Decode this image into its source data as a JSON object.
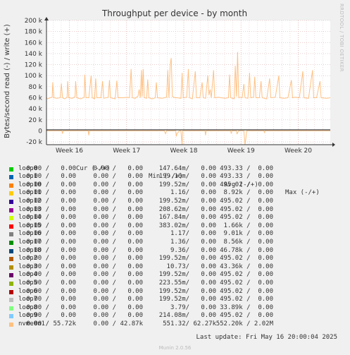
{
  "chart_data": {
    "type": "line",
    "title": "Throughput per device - by month",
    "ylabel": "Bytes/second read (-) / write (+)",
    "side_label": "RRDTOOL / TOBI OETIKER",
    "ylim": [
      -25000,
      200000
    ],
    "yticks": [
      {
        "label": "200 k",
        "value": 200000
      },
      {
        "label": "180 k",
        "value": 180000
      },
      {
        "label": "160 k",
        "value": 160000
      },
      {
        "label": "140 k",
        "value": 140000
      },
      {
        "label": "120 k",
        "value": 120000
      },
      {
        "label": "100 k",
        "value": 100000
      },
      {
        "label": "80 k",
        "value": 80000
      },
      {
        "label": "60 k",
        "value": 60000
      },
      {
        "label": "40 k",
        "value": 40000
      },
      {
        "label": "20 k",
        "value": 20000
      },
      {
        "label": "0",
        "value": 0
      },
      {
        "label": "-20 k",
        "value": -20000
      }
    ],
    "xlim": [
      15.6,
      20.56
    ],
    "xticks": [
      {
        "label": "Week 16",
        "value": 16
      },
      {
        "label": "Week 17",
        "value": 17
      },
      {
        "label": "Week 18",
        "value": 18
      },
      {
        "label": "Week 19",
        "value": 19
      },
      {
        "label": "Week 20",
        "value": 20
      }
    ],
    "grid": true,
    "series": [
      {
        "name": "nvme0n1",
        "color": "#ffc082",
        "write_points": [
          [
            15.6,
            60000
          ],
          [
            15.62,
            58000
          ],
          [
            15.66,
            60000
          ],
          [
            15.7,
            61000
          ],
          [
            15.71,
            88000
          ],
          [
            15.73,
            60000
          ],
          [
            15.78,
            59000
          ],
          [
            15.84,
            60000
          ],
          [
            15.86,
            86000
          ],
          [
            15.88,
            60000
          ],
          [
            15.92,
            58000
          ],
          [
            15.96,
            61000
          ],
          [
            15.97,
            90000
          ],
          [
            15.99,
            60000
          ],
          [
            16.05,
            59000
          ],
          [
            16.1,
            62000
          ],
          [
            16.11,
            90000
          ],
          [
            16.13,
            60000
          ],
          [
            16.2,
            58000
          ],
          [
            16.26,
            61000
          ],
          [
            16.27,
            102000
          ],
          [
            16.29,
            60000
          ],
          [
            16.34,
            60000
          ],
          [
            16.38,
            100000
          ],
          [
            16.4,
            60000
          ],
          [
            16.44,
            58000
          ],
          [
            16.46,
            95000
          ],
          [
            16.48,
            60000
          ],
          [
            16.55,
            60000
          ],
          [
            16.58,
            90000
          ],
          [
            16.6,
            59000
          ],
          [
            16.68,
            61000
          ],
          [
            16.7,
            92000
          ],
          [
            16.72,
            60000
          ],
          [
            16.8,
            58000
          ],
          [
            16.83,
            91000
          ],
          [
            16.85,
            60000
          ],
          [
            16.95,
            60000
          ],
          [
            17.0,
            61000
          ],
          [
            17.05,
            60000
          ],
          [
            17.08,
            112000
          ],
          [
            17.1,
            60000
          ],
          [
            17.15,
            59000
          ],
          [
            17.2,
            63000
          ],
          [
            17.22,
            75000
          ],
          [
            17.24,
            60000
          ],
          [
            17.26,
            110000
          ],
          [
            17.27,
            62000
          ],
          [
            17.29,
            112000
          ],
          [
            17.31,
            60000
          ],
          [
            17.35,
            59000
          ],
          [
            17.37,
            93000
          ],
          [
            17.39,
            60000
          ],
          [
            17.45,
            58000
          ],
          [
            17.5,
            60000
          ],
          [
            17.52,
            88000
          ],
          [
            17.54,
            60000
          ],
          [
            17.62,
            59000
          ],
          [
            17.7,
            61000
          ],
          [
            17.72,
            110000
          ],
          [
            17.74,
            60000
          ],
          [
            17.76,
            115000
          ],
          [
            17.77,
            125000
          ],
          [
            17.78,
            132000
          ],
          [
            17.8,
            62000
          ],
          [
            17.85,
            60000
          ],
          [
            17.88,
            60000
          ],
          [
            17.95,
            59000
          ],
          [
            17.97,
            105000
          ],
          [
            17.99,
            60000
          ],
          [
            18.05,
            61000
          ],
          [
            18.08,
            112000
          ],
          [
            18.1,
            60000
          ],
          [
            18.15,
            58000
          ],
          [
            18.2,
            108000
          ],
          [
            18.22,
            60000
          ],
          [
            18.28,
            60000
          ],
          [
            18.32,
            88000
          ],
          [
            18.34,
            60000
          ],
          [
            18.38,
            59000
          ],
          [
            18.42,
            100000
          ],
          [
            18.44,
            65000
          ],
          [
            18.46,
            75000
          ],
          [
            18.48,
            60000
          ],
          [
            18.52,
            110000
          ],
          [
            18.54,
            60000
          ],
          [
            18.6,
            61000
          ],
          [
            18.65,
            60000
          ],
          [
            18.72,
            59000
          ],
          [
            18.78,
            60000
          ],
          [
            18.8,
            102000
          ],
          [
            18.82,
            60000
          ],
          [
            18.88,
            58000
          ],
          [
            18.9,
            118000
          ],
          [
            18.92,
            62000
          ],
          [
            18.94,
            143000
          ],
          [
            18.96,
            60000
          ],
          [
            18.99,
            61000
          ],
          [
            19.02,
            60000
          ],
          [
            19.05,
            85000
          ],
          [
            19.07,
            60000
          ],
          [
            19.12,
            59000
          ],
          [
            19.15,
            105000
          ],
          [
            19.17,
            60000
          ],
          [
            19.22,
            61000
          ],
          [
            19.24,
            98000
          ],
          [
            19.26,
            60000
          ],
          [
            19.32,
            60000
          ],
          [
            19.35,
            90000
          ],
          [
            19.37,
            60000
          ],
          [
            19.45,
            58000
          ],
          [
            19.5,
            95000
          ],
          [
            19.52,
            60000
          ],
          [
            19.6,
            61000
          ],
          [
            19.66,
            100000
          ],
          [
            19.68,
            60000
          ],
          [
            19.75,
            59000
          ],
          [
            19.82,
            60000
          ],
          [
            19.88,
            92000
          ],
          [
            19.9,
            60000
          ],
          [
            19.95,
            61000
          ],
          [
            20.02,
            60000
          ],
          [
            20.08,
            108000
          ],
          [
            20.1,
            60000
          ],
          [
            20.18,
            59000
          ],
          [
            20.25,
            110000
          ],
          [
            20.27,
            60000
          ],
          [
            20.32,
            60000
          ],
          [
            20.38,
            90000
          ],
          [
            20.4,
            60000
          ],
          [
            20.5,
            59000
          ],
          [
            20.56,
            60000
          ]
        ],
        "read_points": [
          [
            15.6,
            0
          ],
          [
            15.87,
            0
          ],
          [
            15.88,
            -5000
          ],
          [
            15.89,
            0
          ],
          [
            16.33,
            0
          ],
          [
            16.34,
            -8000
          ],
          [
            16.35,
            0
          ],
          [
            17.66,
            0
          ],
          [
            17.68,
            -5000
          ],
          [
            17.7,
            0
          ],
          [
            17.86,
            0
          ],
          [
            17.87,
            -10000
          ],
          [
            17.88,
            -5000
          ],
          [
            17.9,
            -3000
          ],
          [
            17.92,
            0
          ],
          [
            17.95,
            0
          ],
          [
            17.96,
            -15000
          ],
          [
            17.97,
            -25000
          ],
          [
            17.98,
            0
          ],
          [
            18.37,
            0
          ],
          [
            18.38,
            -8000
          ],
          [
            18.39,
            0
          ],
          [
            18.82,
            0
          ],
          [
            18.83,
            -5000
          ],
          [
            18.84,
            0
          ],
          [
            18.92,
            0
          ],
          [
            18.93,
            -6000
          ],
          [
            18.94,
            -3000
          ],
          [
            18.96,
            0
          ],
          [
            19.05,
            0
          ],
          [
            19.06,
            -12000
          ],
          [
            19.07,
            -25000
          ],
          [
            19.08,
            -18000
          ],
          [
            19.1,
            0
          ],
          [
            19.4,
            0
          ],
          [
            19.41,
            -3000
          ],
          [
            19.42,
            0
          ],
          [
            20.56,
            0
          ]
        ]
      }
    ],
    "legend_header": {
      "cur": "Cur (-/+)",
      "min": "Min (-/+)",
      "avg": "Avg (-/+)",
      "max": "Max (-/+)"
    },
    "legend": [
      {
        "name": "loop0",
        "color": "#00cc00",
        "cur_r": "0.00",
        "cur_w": "0.00",
        "min_r": "0.00",
        "min_w": "0.00",
        "avg_r": "147.64m",
        "avg_w": "0.00",
        "max_r": "493.33",
        "max_w": "0.00"
      },
      {
        "name": "loop1",
        "color": "#0066b3",
        "cur_r": "0.00",
        "cur_w": "0.00",
        "min_r": "0.00",
        "min_w": "0.00",
        "avg_r": "199.16m",
        "avg_w": "0.00",
        "max_r": "493.33",
        "max_w": "0.00"
      },
      {
        "name": "loop10",
        "color": "#ff8000",
        "cur_r": "0.00",
        "cur_w": "0.00",
        "min_r": "0.00",
        "min_w": "0.00",
        "avg_r": "199.52m",
        "avg_w": "0.00",
        "max_r": "495.02",
        "max_w": "0.00"
      },
      {
        "name": "loop11",
        "color": "#ffcc00",
        "cur_r": "0.00",
        "cur_w": "0.00",
        "min_r": "0.00",
        "min_w": "0.00",
        "avg_r": "1.16",
        "avg_w": "0.00",
        "max_r": "8.92k",
        "max_w": "0.00"
      },
      {
        "name": "loop12",
        "color": "#330099",
        "cur_r": "0.00",
        "cur_w": "0.00",
        "min_r": "0.00",
        "min_w": "0.00",
        "avg_r": "199.52m",
        "avg_w": "0.00",
        "max_r": "495.02",
        "max_w": "0.00"
      },
      {
        "name": "loop13",
        "color": "#990099",
        "cur_r": "0.00",
        "cur_w": "0.00",
        "min_r": "0.00",
        "min_w": "0.00",
        "avg_r": "208.62m",
        "avg_w": "0.00",
        "max_r": "495.02",
        "max_w": "0.00"
      },
      {
        "name": "loop14",
        "color": "#ccff00",
        "cur_r": "0.00",
        "cur_w": "0.00",
        "min_r": "0.00",
        "min_w": "0.00",
        "avg_r": "167.84m",
        "avg_w": "0.00",
        "max_r": "495.02",
        "max_w": "0.00"
      },
      {
        "name": "loop15",
        "color": "#ff0000",
        "cur_r": "0.00",
        "cur_w": "0.00",
        "min_r": "0.00",
        "min_w": "0.00",
        "avg_r": "383.02m",
        "avg_w": "0.00",
        "max_r": "1.66k",
        "max_w": "0.00"
      },
      {
        "name": "loop16",
        "color": "#808080",
        "cur_r": "0.00",
        "cur_w": "0.00",
        "min_r": "0.00",
        "min_w": "0.00",
        "avg_r": "1.17",
        "avg_w": "0.00",
        "max_r": "9.01k",
        "max_w": "0.00"
      },
      {
        "name": "loop17",
        "color": "#008f00",
        "cur_r": "0.00",
        "cur_w": "0.00",
        "min_r": "0.00",
        "min_w": "0.00",
        "avg_r": "1.36",
        "avg_w": "0.00",
        "max_r": "8.56k",
        "max_w": "0.00"
      },
      {
        "name": "loop18",
        "color": "#00487d",
        "cur_r": "0.00",
        "cur_w": "0.00",
        "min_r": "0.00",
        "min_w": "0.00",
        "avg_r": "9.36",
        "avg_w": "0.00",
        "max_r": "46.78k",
        "max_w": "0.00"
      },
      {
        "name": "loop2",
        "color": "#b35a00",
        "cur_r": "0.00",
        "cur_w": "0.00",
        "min_r": "0.00",
        "min_w": "0.00",
        "avg_r": "199.52m",
        "avg_w": "0.00",
        "max_r": "495.02",
        "max_w": "0.00"
      },
      {
        "name": "loop3",
        "color": "#b38f00",
        "cur_r": "0.00",
        "cur_w": "0.00",
        "min_r": "0.00",
        "min_w": "0.00",
        "avg_r": "10.73",
        "avg_w": "0.00",
        "max_r": "43.36k",
        "max_w": "0.00"
      },
      {
        "name": "loop4",
        "color": "#6b006b",
        "cur_r": "0.00",
        "cur_w": "0.00",
        "min_r": "0.00",
        "min_w": "0.00",
        "avg_r": "199.52m",
        "avg_w": "0.00",
        "max_r": "495.02",
        "max_w": "0.00"
      },
      {
        "name": "loop5",
        "color": "#8fb300",
        "cur_r": "0.00",
        "cur_w": "0.00",
        "min_r": "0.00",
        "min_w": "0.00",
        "avg_r": "223.55m",
        "avg_w": "0.00",
        "max_r": "495.02",
        "max_w": "0.00"
      },
      {
        "name": "loop6",
        "color": "#b30000",
        "cur_r": "0.00",
        "cur_w": "0.00",
        "min_r": "0.00",
        "min_w": "0.00",
        "avg_r": "199.52m",
        "avg_w": "0.00",
        "max_r": "495.02",
        "max_w": "0.00"
      },
      {
        "name": "loop7",
        "color": "#bebebe",
        "cur_r": "0.00",
        "cur_w": "0.00",
        "min_r": "0.00",
        "min_w": "0.00",
        "avg_r": "199.52m",
        "avg_w": "0.00",
        "max_r": "495.02",
        "max_w": "0.00"
      },
      {
        "name": "loop8",
        "color": "#80ff80",
        "cur_r": "0.00",
        "cur_w": "0.00",
        "min_r": "0.00",
        "min_w": "0.00",
        "avg_r": "3.79",
        "avg_w": "0.00",
        "max_r": "33.89k",
        "max_w": "0.00"
      },
      {
        "name": "loop9",
        "color": "#80c9ff",
        "cur_r": "0.00",
        "cur_w": "0.00",
        "min_r": "0.00",
        "min_w": "0.00",
        "avg_r": "214.08m",
        "avg_w": "0.00",
        "max_r": "495.02",
        "max_w": "0.00"
      },
      {
        "name": "nvme0n1",
        "color": "#ffc080",
        "cur_r": "0.00",
        "cur_w": "55.72k",
        "min_r": "0.00",
        "min_w": "42.87k",
        "avg_r": "551.32",
        "avg_w": "62.27k",
        "max_r": "552.20k",
        "max_w": "2.02M"
      }
    ]
  },
  "footer": {
    "last_update": "Last update: Fri May 16 20:00:04 2025",
    "munin": "Munin 2.0.56"
  }
}
